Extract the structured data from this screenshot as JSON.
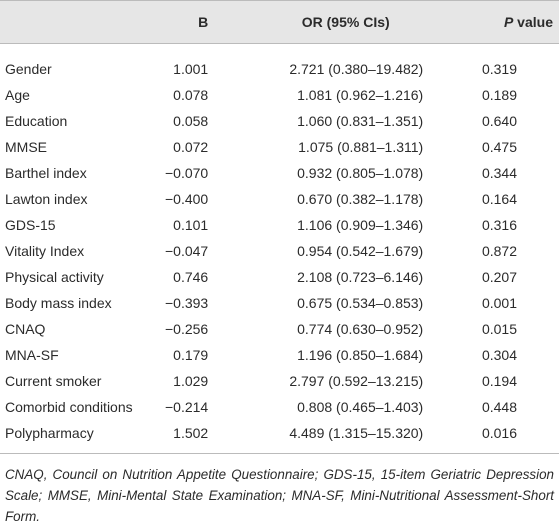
{
  "table": {
    "header": [
      {
        "text": "B"
      },
      {
        "text": "OR (95% CIs)"
      },
      {
        "italic": "P",
        "text": " value"
      }
    ],
    "rows": [
      [
        "Gender",
        "1.001",
        "2.721 (0.380–19.482)",
        "0.319"
      ],
      [
        "Age",
        "0.078",
        "1.081 (0.962–1.216)",
        "0.189"
      ],
      [
        "Education",
        "0.058",
        "1.060 (0.831–1.351)",
        "0.640"
      ],
      [
        "MMSE",
        "0.072",
        "1.075 (0.881–1.311)",
        "0.475"
      ],
      [
        "Barthel index",
        "−0.070",
        "0.932 (0.805–1.078)",
        "0.344"
      ],
      [
        "Lawton index",
        "−0.400",
        "0.670 (0.382–1.178)",
        "0.164"
      ],
      [
        "GDS-15",
        "0.101",
        "1.106 (0.909–1.346)",
        "0.316"
      ],
      [
        "Vitality Index",
        "−0.047",
        "0.954 (0.542–1.679)",
        "0.872"
      ],
      [
        "Physical activity",
        "0.746",
        "2.108 (0.723–6.146)",
        "0.207"
      ],
      [
        "Body mass index",
        "−0.393",
        "0.675 (0.534–0.853)",
        "0.001"
      ],
      [
        "CNAQ",
        "−0.256",
        "0.774 (0.630–0.952)",
        "0.015"
      ],
      [
        "MNA-SF",
        "0.179",
        "1.196 (0.850–1.684)",
        "0.304"
      ],
      [
        "Current smoker",
        "1.029",
        "2.797 (0.592–13.215)",
        "0.194"
      ],
      [
        "Comorbid conditions",
        "−0.214",
        "0.808 (0.465–1.403)",
        "0.448"
      ],
      [
        "Polypharmacy",
        "1.502",
        "4.489 (1.315–15.320)",
        "0.016"
      ]
    ],
    "footnote": "CNAQ, Council on Nutrition Appetite Questionnaire; GDS-15, 15-item Geriatric Depression Scale; MMSE, Mini-Mental State Examination; MNA-SF, Mini-Nutritional Assessment-Short Form."
  }
}
